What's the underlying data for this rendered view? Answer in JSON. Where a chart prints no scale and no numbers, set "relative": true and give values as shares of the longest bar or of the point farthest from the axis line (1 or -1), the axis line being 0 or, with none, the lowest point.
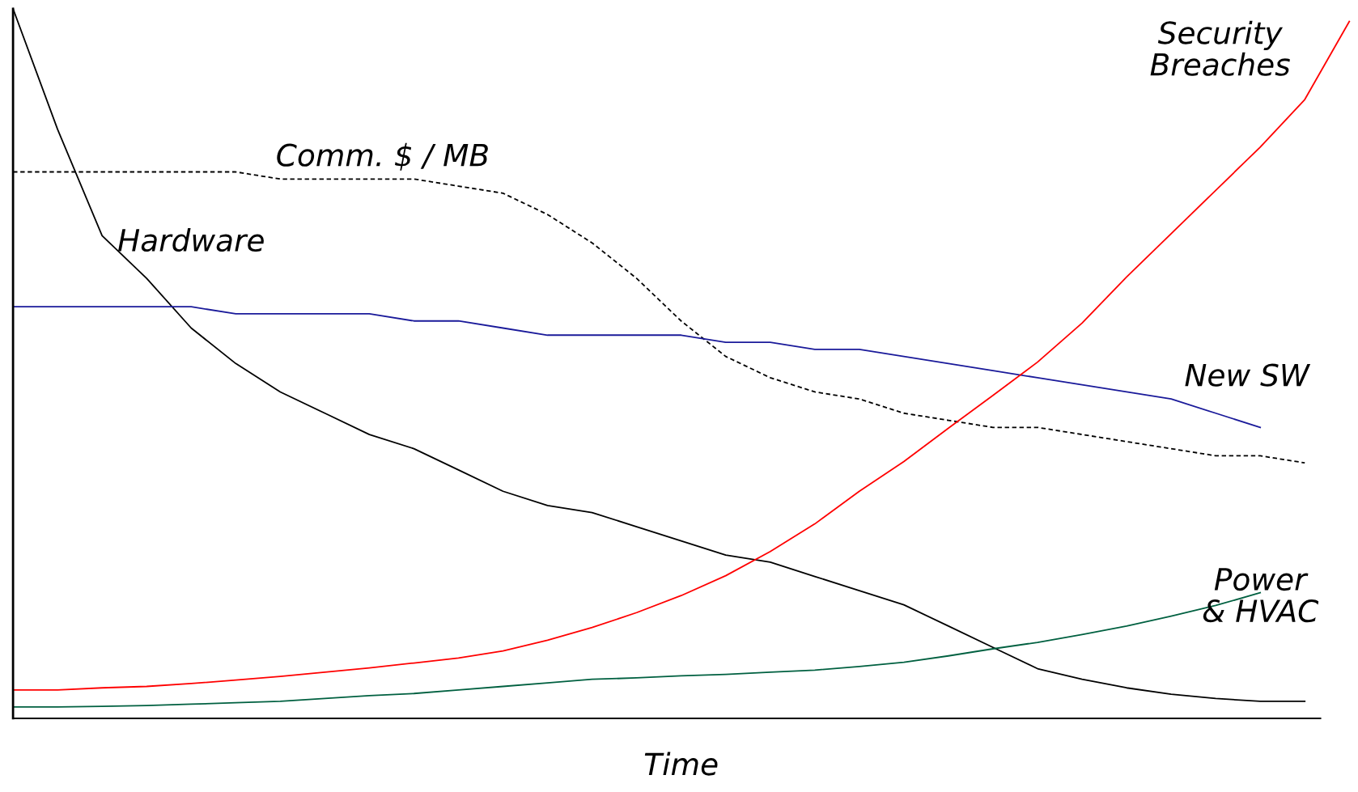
{
  "chart_data": {
    "type": "line",
    "relative": true,
    "xlabel": "Time",
    "legend": false,
    "categories": [
      null,
      null,
      null,
      null,
      null,
      null,
      null,
      null,
      null,
      null,
      null,
      null,
      null,
      null,
      null,
      null,
      null,
      null,
      null,
      null,
      null,
      null,
      null,
      null,
      null,
      null,
      null,
      null,
      null,
      null,
      null
    ],
    "series": [
      {
        "name": "Hardware",
        "color": "#000000",
        "line_style": "solid",
        "values": [
          1.0,
          0.83,
          0.68,
          0.62,
          0.55,
          0.5,
          0.46,
          0.43,
          0.4,
          0.38,
          0.35,
          0.32,
          0.3,
          0.29,
          0.27,
          0.25,
          0.23,
          0.22,
          0.2,
          0.18,
          0.16,
          0.13,
          0.1,
          0.07,
          0.055,
          0.043,
          0.034,
          0.028,
          0.024,
          0.024,
          null
        ]
      },
      {
        "name": "Comm. $ / MB",
        "color": "#000000",
        "line_style": "dashed",
        "values": [
          0.77,
          0.77,
          0.77,
          0.77,
          0.77,
          0.77,
          0.76,
          0.76,
          0.76,
          0.76,
          0.75,
          0.74,
          0.71,
          0.67,
          0.62,
          0.56,
          0.51,
          0.48,
          0.46,
          0.45,
          0.43,
          0.42,
          0.41,
          0.41,
          0.4,
          0.39,
          0.38,
          0.37,
          0.37,
          0.36,
          null
        ]
      },
      {
        "name": "New SW",
        "color": "#1a1a9a",
        "line_style": "solid",
        "values": [
          0.58,
          0.58,
          0.58,
          0.58,
          0.58,
          0.57,
          0.57,
          0.57,
          0.57,
          0.56,
          0.56,
          0.55,
          0.54,
          0.54,
          0.54,
          0.54,
          0.53,
          0.53,
          0.52,
          0.52,
          0.51,
          0.5,
          0.49,
          0.48,
          0.47,
          0.46,
          0.45,
          0.43,
          0.41,
          null,
          null
        ]
      },
      {
        "name": "Security\nBreaches",
        "color": "#ff0000",
        "line_style": "solid",
        "values": [
          0.04,
          0.04,
          0.043,
          0.045,
          0.049,
          0.054,
          0.059,
          0.065,
          0.071,
          0.078,
          0.085,
          0.095,
          0.11,
          0.128,
          0.149,
          0.173,
          0.201,
          0.235,
          0.274,
          0.32,
          0.362,
          0.409,
          0.455,
          0.502,
          0.557,
          0.622,
          0.683,
          0.744,
          0.805,
          0.872,
          0.982
        ]
      },
      {
        "name": "Power\n& HVAC",
        "color": "#006040",
        "line_style": "solid",
        "values": [
          0.016,
          0.016,
          0.017,
          0.018,
          0.02,
          0.022,
          0.024,
          0.028,
          0.032,
          0.035,
          0.04,
          0.045,
          0.05,
          0.055,
          0.057,
          0.06,
          0.062,
          0.065,
          0.068,
          0.073,
          0.079,
          0.088,
          0.098,
          0.107,
          0.118,
          0.13,
          0.144,
          0.159,
          0.177,
          null,
          null
        ]
      }
    ]
  }
}
